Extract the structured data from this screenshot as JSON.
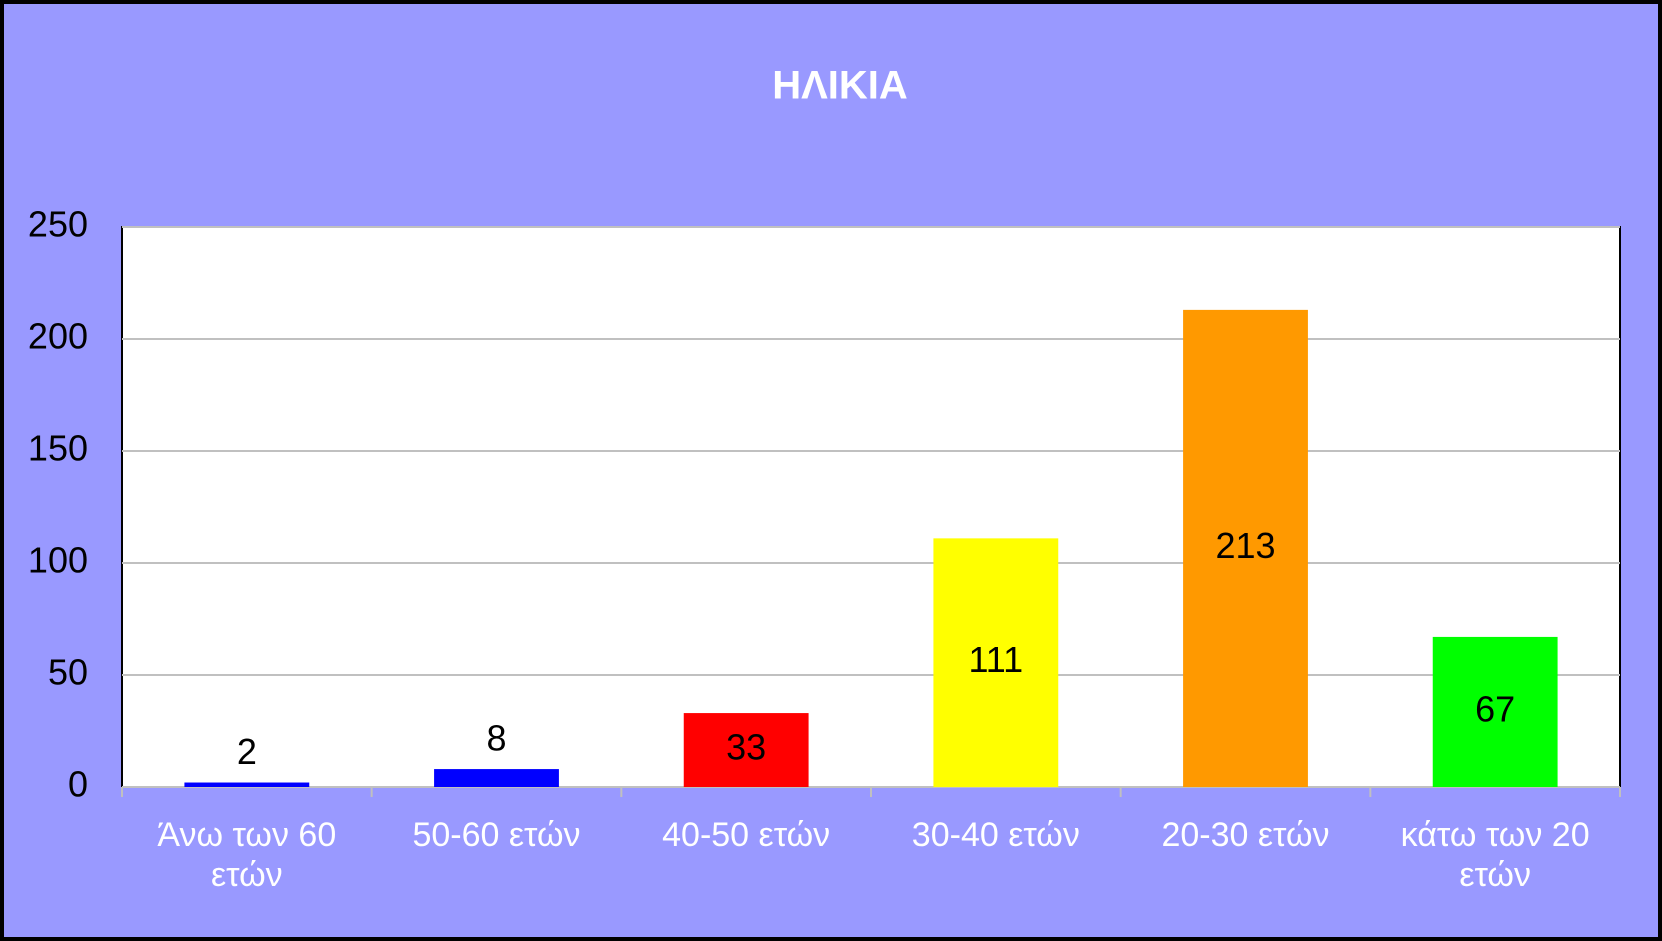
{
  "chart_data": {
    "type": "bar",
    "title": "ΗΛΙΚΙΑ",
    "categories": [
      "Άνω των 60 ετών",
      "50-60 ετών",
      "40-50 ετών",
      "30-40 ετών",
      "20-30 ετών",
      "κάτω των 20 ετών"
    ],
    "values": [
      2,
      8,
      33,
      111,
      213,
      67
    ],
    "colors": [
      "#0000ff",
      "#0000ff",
      "#ff0000",
      "#ffff00",
      "#ff9900",
      "#00ff00"
    ],
    "ylim": [
      0,
      250
    ],
    "yticks": [
      0,
      50,
      100,
      150,
      200,
      250
    ],
    "grid": true
  }
}
